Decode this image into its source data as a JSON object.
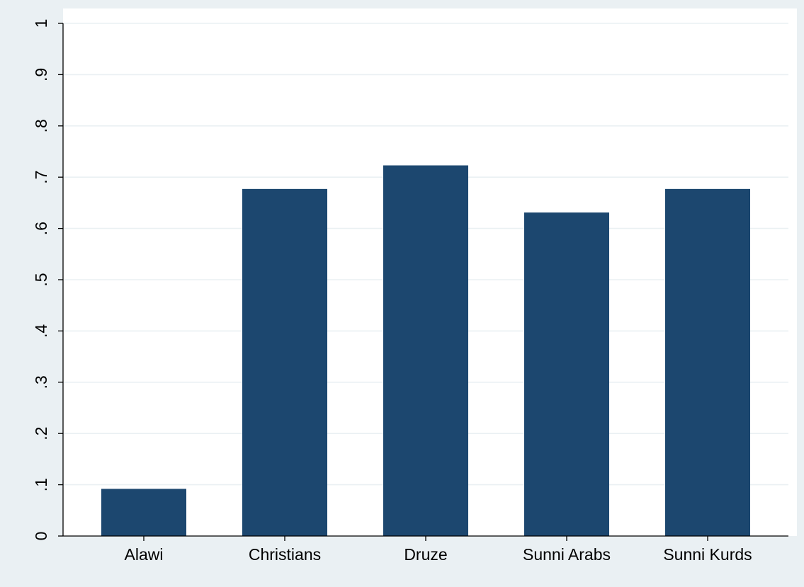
{
  "chart_data": {
    "type": "bar",
    "categories": [
      "Alawi",
      "Christians",
      "Druze",
      "Sunni Arabs",
      "Sunni Kurds"
    ],
    "values": [
      0.092,
      0.677,
      0.723,
      0.631,
      0.677
    ],
    "ylim": [
      0,
      1
    ],
    "yticks": [
      0,
      0.1,
      0.2,
      0.3,
      0.4,
      0.5,
      0.6,
      0.7,
      0.8,
      0.9,
      1
    ],
    "ytick_labels": [
      "0",
      ".1",
      ".2",
      ".3",
      ".4",
      ".5",
      ".6",
      ".7",
      ".8",
      ".9",
      "1"
    ],
    "title": "",
    "xlabel": "",
    "ylabel": "",
    "grid": true,
    "colors": {
      "bar": "#1c476f",
      "outer_background": "#eaf0f3",
      "plot_background": "#ffffff",
      "grid": "#eaf0f3",
      "axis": "#000000"
    }
  }
}
